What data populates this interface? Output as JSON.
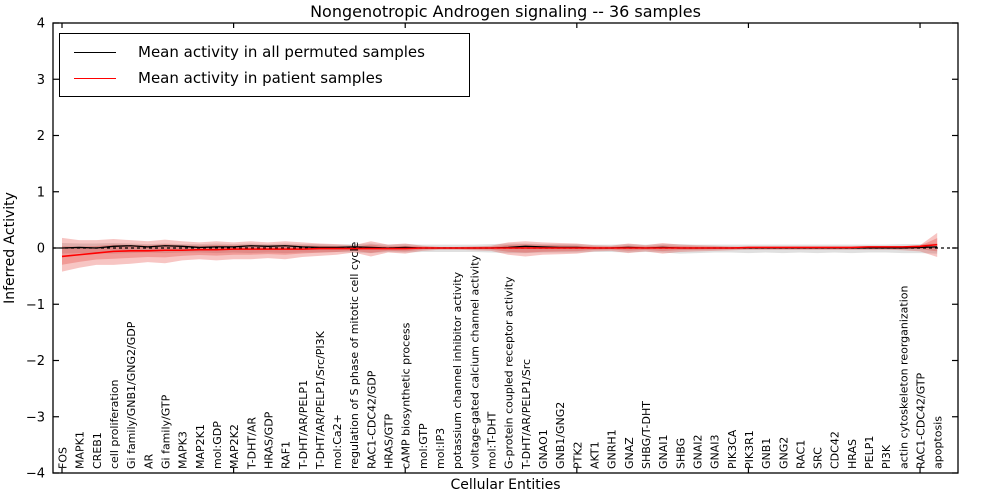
{
  "title": "Nongenotropic Androgen signaling -- 36 samples",
  "legend": [
    {
      "label": "Mean activity in all permuted samples",
      "color": "#000000"
    },
    {
      "label": "Mean activity in patient samples",
      "color": "#ff0000"
    }
  ],
  "chart_data": {
    "type": "line",
    "title": "Nongenotropic Androgen signaling -- 36 samples",
    "xlabel": "Cellular Entities",
    "ylabel": "Inferred Activity",
    "ylim": [
      -4,
      4
    ],
    "ytick_labels": [
      "4",
      "3",
      "2",
      "1",
      "0",
      "−1",
      "−2",
      "−3",
      "−4"
    ],
    "ytick_values": [
      4,
      3,
      2,
      1,
      0,
      -1,
      -2,
      -3,
      -4
    ],
    "grid": false,
    "legend_position": "upper left",
    "zero_line": 0,
    "categories": [
      "FOS",
      "MAPK1",
      "CREB1",
      "cell proliferation",
      "Gi family/GNB1/GNG2/GDP",
      "AR",
      "Gi family/GTP",
      "MAPK3",
      "MAP2K1",
      "mol:GDP",
      "MAP2K2",
      "T-DHT/AR",
      "HRAS/GDP",
      "RAF1",
      "T-DHT/AR/PELP1",
      "T-DHT/AR/PELP1/Src/PI3K",
      "mol:Ca2+",
      "regulation of S phase of mitotic cell cycle",
      "RAC1-CDC42/GDP",
      "HRAS/GTP",
      "cAMP biosynthetic process",
      "mol:GTP",
      "mol:IP3",
      "potassium channel inhibitor activity",
      "voltage-gated calcium channel activity",
      "mol:T-DHT",
      "G-protein coupled receptor activity",
      "T-DHT/AR/PELP1/Src",
      "GNAO1",
      "GNB1/GNG2",
      "PTK2",
      "AKT1",
      "GNRH1",
      "GNAZ",
      "SHBG/T-DHT",
      "GNAI1",
      "SHBG",
      "GNAI2",
      "GNAI3",
      "PIK3CA",
      "PIK3R1",
      "GNB1",
      "GNG2",
      "RAC1",
      "SRC",
      "CDC42",
      "HRAS",
      "PELP1",
      "PI3K",
      "actin cytoskeleton reorganization",
      "RAC1-CDC42/GTP",
      "apoptosis"
    ],
    "series": [
      {
        "name": "Mean activity in all permuted samples",
        "color": "#000000",
        "values": [
          0.0,
          0.01,
          0.0,
          0.03,
          0.04,
          0.02,
          0.04,
          0.03,
          0.01,
          0.02,
          0.02,
          0.04,
          0.03,
          0.04,
          0.02,
          0.01,
          0.01,
          0.02,
          0.01,
          0.0,
          0.01,
          0.0,
          0.0,
          0.0,
          0.0,
          0.0,
          0.01,
          0.03,
          0.02,
          0.01,
          0.01,
          0.0,
          0.0,
          0.01,
          0.0,
          0.01,
          0.0,
          0.0,
          0.0,
          0.0,
          0.0,
          0.0,
          0.0,
          0.0,
          0.0,
          0.0,
          0.0,
          0.0,
          0.0,
          0.0,
          0.01,
          0.02
        ]
      },
      {
        "name": "Mean activity in patient samples",
        "color": "#ff0000",
        "values": [
          -0.15,
          -0.12,
          -0.09,
          -0.06,
          -0.05,
          -0.05,
          -0.04,
          -0.04,
          -0.03,
          -0.03,
          -0.02,
          -0.02,
          -0.02,
          -0.02,
          -0.02,
          -0.01,
          -0.01,
          -0.01,
          -0.01,
          -0.01,
          -0.01,
          0.0,
          0.0,
          0.0,
          0.0,
          0.0,
          0.0,
          0.0,
          0.0,
          0.0,
          0.0,
          0.0,
          0.0,
          0.0,
          0.0,
          0.0,
          0.0,
          0.0,
          0.0,
          0.0,
          0.01,
          0.01,
          0.01,
          0.01,
          0.01,
          0.01,
          0.01,
          0.02,
          0.02,
          0.02,
          0.03,
          0.06
        ]
      }
    ],
    "bands": [
      {
        "name": "permuted-samples-band",
        "fill": "rgba(130,130,130,0.25)",
        "top": [
          0.09,
          0.08,
          0.08,
          0.09,
          0.08,
          0.07,
          0.08,
          0.07,
          0.07,
          0.08,
          0.07,
          0.08,
          0.07,
          0.08,
          0.07,
          0.07,
          0.06,
          0.07,
          0.08,
          0.06,
          0.07,
          0.06,
          0.06,
          0.06,
          0.06,
          0.07,
          0.08,
          0.08,
          0.07,
          0.07,
          0.07,
          0.06,
          0.06,
          0.07,
          0.06,
          0.07,
          0.07,
          0.06,
          0.06,
          0.06,
          0.06,
          0.06,
          0.06,
          0.06,
          0.06,
          0.06,
          0.06,
          0.06,
          0.06,
          0.07,
          0.07,
          0.08
        ],
        "bottom": [
          -0.1,
          -0.09,
          -0.09,
          -0.1,
          -0.09,
          -0.08,
          -0.09,
          -0.08,
          -0.08,
          -0.09,
          -0.08,
          -0.09,
          -0.08,
          -0.09,
          -0.08,
          -0.08,
          -0.07,
          -0.08,
          -0.09,
          -0.07,
          -0.08,
          -0.07,
          -0.07,
          -0.07,
          -0.07,
          -0.08,
          -0.09,
          -0.09,
          -0.08,
          -0.08,
          -0.08,
          -0.07,
          -0.07,
          -0.08,
          -0.07,
          -0.08,
          -0.1,
          -0.09,
          -0.08,
          -0.08,
          -0.09,
          -0.08,
          -0.09,
          -0.08,
          -0.09,
          -0.08,
          -0.09,
          -0.08,
          -0.08,
          -0.09,
          -0.09,
          -0.1
        ]
      },
      {
        "name": "patient-samples-band",
        "fill": "rgba(225,45,40,0.28)",
        "top": [
          0.18,
          0.14,
          0.14,
          0.16,
          0.14,
          0.12,
          0.15,
          0.12,
          0.1,
          0.12,
          0.1,
          0.12,
          0.1,
          0.12,
          0.1,
          0.08,
          0.07,
          0.05,
          0.12,
          0.06,
          0.08,
          0.04,
          0.02,
          0.02,
          0.03,
          0.04,
          0.1,
          0.12,
          0.1,
          0.09,
          0.08,
          0.05,
          0.04,
          0.08,
          0.05,
          0.09,
          0.06,
          0.05,
          0.04,
          0.03,
          0.02,
          0.02,
          0.02,
          0.02,
          0.02,
          0.02,
          0.02,
          0.02,
          0.02,
          0.03,
          0.05,
          0.27
        ],
        "bottom": [
          -0.42,
          -0.35,
          -0.3,
          -0.3,
          -0.28,
          -0.25,
          -0.27,
          -0.22,
          -0.2,
          -0.22,
          -0.2,
          -0.2,
          -0.18,
          -0.2,
          -0.16,
          -0.14,
          -0.12,
          -0.08,
          -0.15,
          -0.08,
          -0.1,
          -0.05,
          -0.03,
          -0.03,
          -0.04,
          -0.05,
          -0.12,
          -0.15,
          -0.12,
          -0.11,
          -0.1,
          -0.06,
          -0.05,
          -0.09,
          -0.06,
          -0.1,
          -0.07,
          -0.06,
          -0.05,
          -0.04,
          -0.03,
          -0.03,
          -0.03,
          -0.03,
          -0.03,
          -0.03,
          -0.03,
          -0.03,
          -0.03,
          -0.04,
          -0.06,
          -0.16
        ]
      }
    ]
  }
}
